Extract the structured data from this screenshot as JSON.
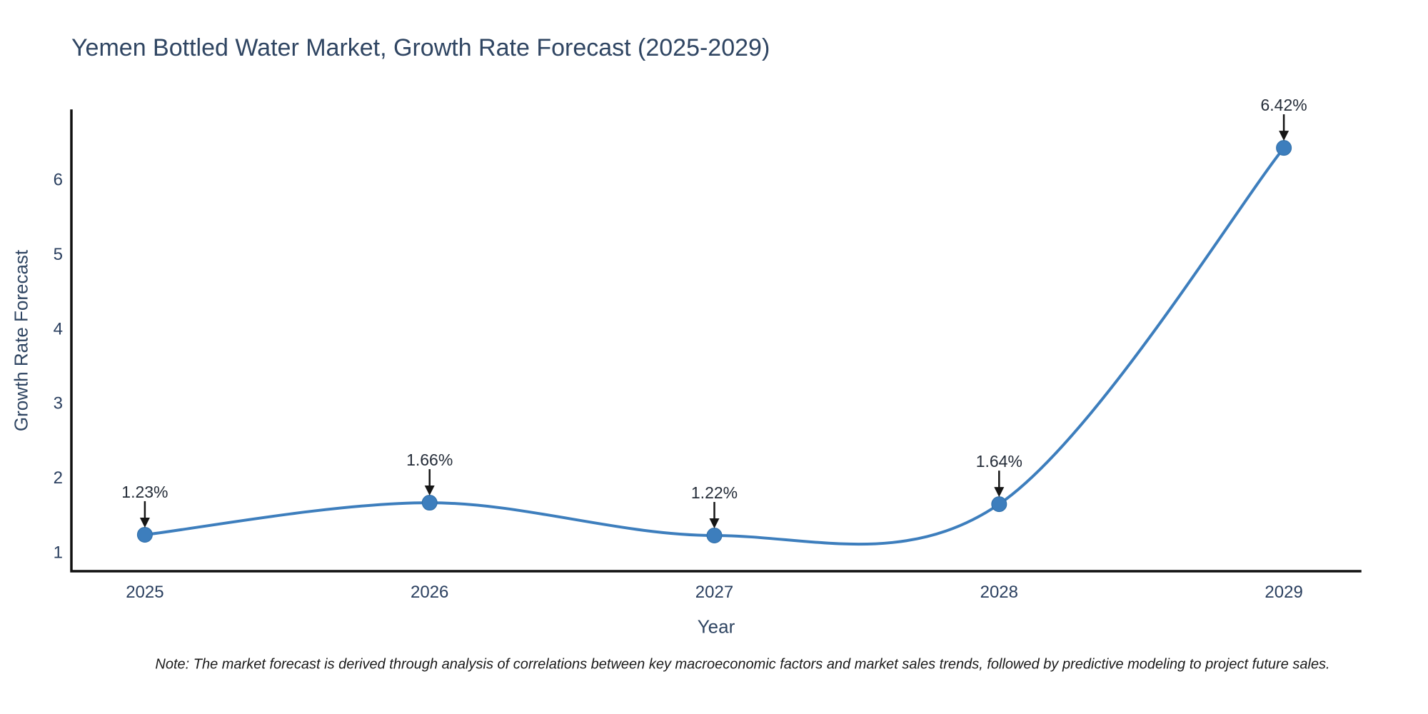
{
  "note": "Note: The market forecast is derived through analysis of correlations between key macroeconomic factors and market sales trends, followed by predictive modeling to project future sales.",
  "chart_data": {
    "type": "line",
    "line_shape": "spline",
    "title": "Yemen Bottled Water Market, Growth Rate Forecast (2025-2029)",
    "xlabel": "Year",
    "ylabel": "Growth Rate Forecast",
    "x": [
      2025,
      2026,
      2027,
      2028,
      2029
    ],
    "values": [
      1.23,
      1.66,
      1.22,
      1.64,
      6.42
    ],
    "point_labels": [
      "1.23%",
      "1.66%",
      "1.22%",
      "1.64%",
      "6.42%"
    ],
    "xticks": [
      2025,
      2026,
      2027,
      2028,
      2029
    ],
    "yticks": [
      1,
      2,
      3,
      4,
      5,
      6
    ],
    "xlim": [
      2024.742,
      2029.268
    ],
    "ylim": [
      0.741,
      6.919
    ],
    "grid": false,
    "legend": "none",
    "markers": true,
    "annotations_arrow": true,
    "colors": {
      "line": "#3d7ebd",
      "marker": "#3d7ebd",
      "marker_edge": "#2f6ea8",
      "axis": "#101010",
      "tick_text": "#2a3f5f",
      "title_text": "#2f4562",
      "annotation_text": "#242c38",
      "arrow": "#161616",
      "background": "#ffffff"
    }
  }
}
